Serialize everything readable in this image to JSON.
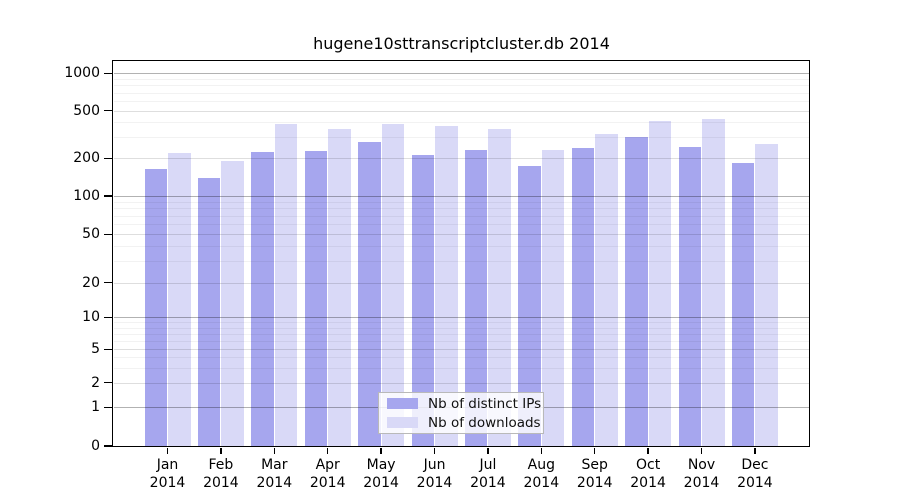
{
  "title": "hugene10sttranscriptcluster.db 2014",
  "legend": {
    "items": [
      {
        "label": "Nb of distinct IPs",
        "color": "#a6a6ee"
      },
      {
        "label": "Nb of downloads",
        "color": "#d9d9f7"
      }
    ]
  },
  "axes": {
    "y_tick_labels": [
      "1000",
      "500",
      "200",
      "100",
      "50",
      "20",
      "10",
      "5",
      "2",
      "1",
      "0"
    ],
    "x_tick_months": [
      "Jan",
      "Feb",
      "Mar",
      "Apr",
      "May",
      "Jun",
      "Jul",
      "Aug",
      "Sep",
      "Oct",
      "Nov",
      "Dec"
    ],
    "x_tick_year": "2014"
  },
  "chart_data": {
    "type": "bar",
    "title": "hugene10sttranscriptcluster.db 2014",
    "categories": [
      "Jan 2014",
      "Feb 2014",
      "Mar 2014",
      "Apr 2014",
      "May 2014",
      "Jun 2014",
      "Jul 2014",
      "Aug 2014",
      "Sep 2014",
      "Oct 2014",
      "Nov 2014",
      "Dec 2014"
    ],
    "series": [
      {
        "name": "Nb of distinct IPs",
        "color": "#a6a6ee",
        "values": [
          165,
          138,
          226,
          230,
          275,
          214,
          235,
          174,
          246,
          303,
          247,
          184
        ]
      },
      {
        "name": "Nb of downloads",
        "color": "#d9d9f7",
        "values": [
          220,
          190,
          390,
          350,
          385,
          372,
          350,
          235,
          320,
          410,
          430,
          265
        ]
      }
    ],
    "yscale": "log",
    "y_ticks": [
      0,
      1,
      2,
      5,
      10,
      20,
      50,
      100,
      200,
      500,
      1000
    ],
    "y_minor_ticks": [
      3,
      4,
      6,
      7,
      8,
      9,
      30,
      40,
      60,
      70,
      80,
      90,
      300,
      400,
      600,
      700,
      800,
      900
    ],
    "ylim": [
      0,
      1300
    ],
    "grid": true,
    "legend_position": "bottom-center-inside"
  }
}
